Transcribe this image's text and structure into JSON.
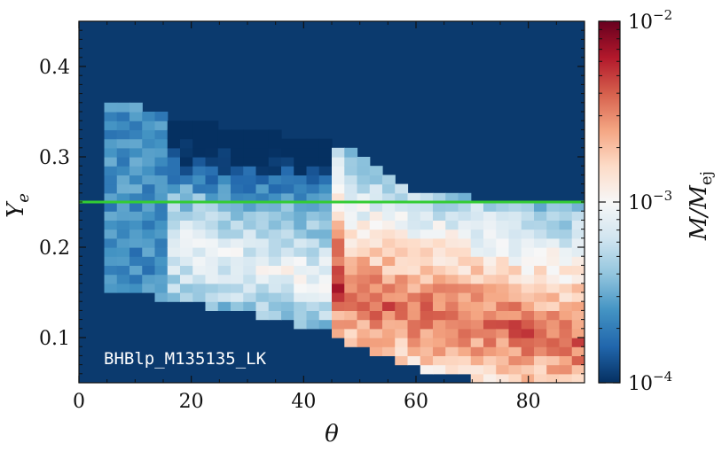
{
  "chart_data": {
    "type": "heatmap",
    "title": "",
    "xlabel": "θ",
    "ylabel": "Y_e",
    "xlim": [
      0,
      90
    ],
    "ylim": [
      0.05,
      0.45
    ],
    "x_ticks": [
      0,
      20,
      40,
      60,
      80
    ],
    "x_tick_labels": [
      "0",
      "20",
      "40",
      "60",
      "80"
    ],
    "y_ticks": [
      0.1,
      0.2,
      0.3,
      0.4
    ],
    "y_tick_labels": [
      "0.1",
      "0.2",
      "0.3",
      "0.4"
    ],
    "annotation": "BHBlp_M135135_LK",
    "horizontal_line": {
      "y": 0.25,
      "color": "#33cc33"
    },
    "colorbar": {
      "label": "M/M_ej",
      "scale": "log",
      "min": 0.0001,
      "max": 0.01,
      "tick_labels": [
        {
          "value": 0.01,
          "base": "10",
          "exp": "−2"
        },
        {
          "value": 0.001,
          "base": "10",
          "exp": "−3"
        },
        {
          "value": 0.0001,
          "base": "10",
          "exp": "−4"
        }
      ],
      "colormap": "RdBu_r"
    },
    "background_color": "#0b3a6e",
    "cell_size": {
      "theta": 2.25,
      "ye": 0.01
    },
    "bins": "theta 0–90 in 40 bins of 2.25°, Y_e 0.05–0.45 in 40 bins of 0.01; each cell's log10(M/M_ej) follows the color scale from −4 to −2, empty cells shown in background color",
    "description_of_distribution": [
      {
        "theta_range": [
          4.5,
          15.75
        ],
        "ye_range": [
          0.15,
          0.36
        ],
        "log10_value_approx": -3.6
      },
      {
        "theta_range": [
          15.75,
          45
        ],
        "ye_range": [
          0.11,
          0.34
        ],
        "log10_value_approx": -3.2
      },
      {
        "theta_range": [
          45,
          90
        ],
        "ye_range": [
          0.06,
          0.27
        ],
        "log10_value_approx": -2.6
      }
    ]
  }
}
